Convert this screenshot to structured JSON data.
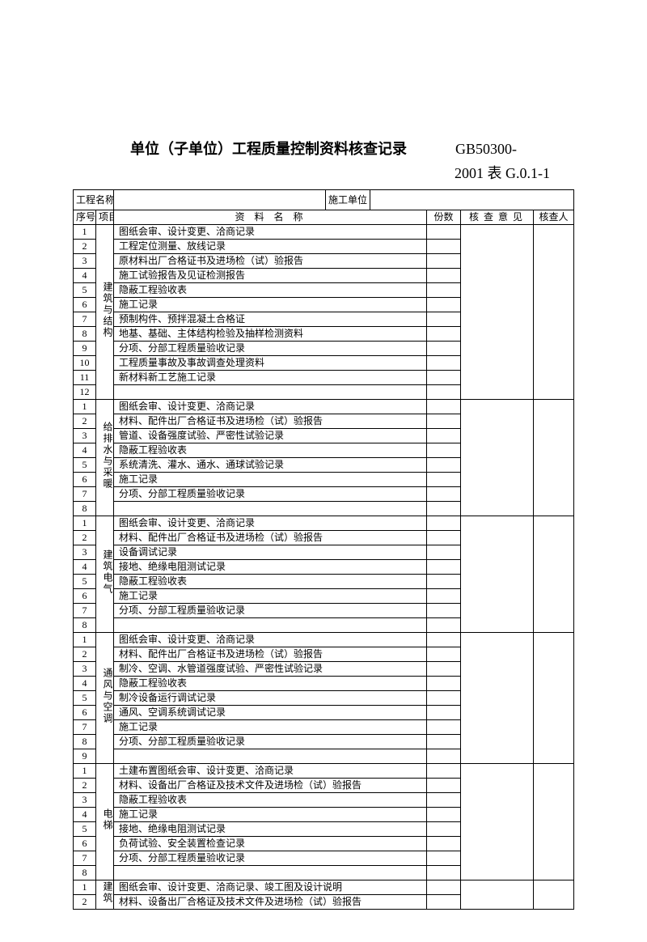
{
  "title_main": "单位（子单位）工程质量控制资料核查记录",
  "title_code": "GB50300-",
  "title_sub": "2001 表 G.0.1-1",
  "header": {
    "proj_name_label": "工程名称",
    "proj_name_value": "",
    "unit_label": "施工单位",
    "unit_value": "",
    "col_seq": "序号",
    "col_cat": "项目",
    "col_desc": "资料名称",
    "col_copies": "份数",
    "col_opinion": "核查意见",
    "col_checker": "核查人"
  },
  "sections": [
    {
      "cat": "建筑与结构",
      "rows": [
        "图纸会审、设计变更、洽商记录",
        "工程定位测量、放线记录",
        "原材料出厂合格证书及进场检（试）验报告",
        "施工试验报告及见证检测报告",
        "隐蔽工程验收表",
        "施工记录",
        "预制构件、预拌混凝土合格证",
        "地基、基础、主体结构检验及抽样检测资料",
        "分项、分部工程质量验收记录",
        "工程质量事故及事故调查处理资料",
        "新材料新工艺施工记录",
        ""
      ]
    },
    {
      "cat": "给排水与采暖",
      "rows": [
        "图纸会审、设计变更、洽商记录",
        "材料、配件出厂合格证书及进场检（试）验报告",
        "管道、设备强度试验、严密性试验记录",
        "隐蔽工程验收表",
        "系统清洗、灌水、通水、通球试验记录",
        "施工记录",
        "分项、分部工程质量验收记录",
        ""
      ]
    },
    {
      "cat": "建筑电气",
      "rows": [
        "图纸会审、设计变更、洽商记录",
        "材料、配件出厂合格证书及进场检（试）验报告",
        "设备调试记录",
        "接地、绝缘电阻测试记录",
        "隐蔽工程验收表",
        "施工记录",
        "分项、分部工程质量验收记录",
        ""
      ]
    },
    {
      "cat": "通风与空调",
      "rows": [
        "图纸会审、设计变更、洽商记录",
        "材料、配件出厂合格证书及进场检（试）验报告",
        "制冷、空调、水管道强度试验、严密性试验记录",
        "隐蔽工程验收表",
        "制冷设备运行调试记录",
        "通风、空调系统调试记录",
        "施工记录",
        "分项、分部工程质量验收记录",
        ""
      ]
    },
    {
      "cat": "电梯",
      "rows": [
        "土建布置图纸会审、设计变更、洽商记录",
        "材料、设备出厂合格证及技术文件及进场检（试）验报告",
        "隐蔽工程验收表",
        "施工记录",
        "接地、绝缘电阻测试记录",
        "负荷试验、安全装置检查记录",
        "分项、分部工程质量验收记录",
        ""
      ]
    },
    {
      "cat": "建筑",
      "rows": [
        "图纸会审、设计变更、洽商记录、竣工图及设计说明",
        "材料、设备出厂合格证及技术文件及进场检（试）验报告"
      ]
    }
  ]
}
